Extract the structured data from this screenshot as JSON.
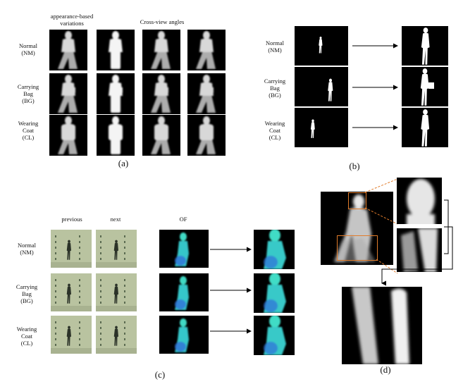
{
  "panel_a": {
    "header_left": "appearance-based\nvariations",
    "header_right": "Cross-view angles",
    "rows": [
      "Normal\n(NM)",
      "Carrying\nBag\n(BG)",
      "Wearing\nCoat\n(CL)"
    ],
    "caption": "(a)"
  },
  "panel_b": {
    "rows": [
      "Normal\n(NM)",
      "Carrying\nBag\n(BG)",
      "Wearing\nCoat\n(CL)"
    ],
    "caption": "(b)"
  },
  "panel_c": {
    "headers": [
      "previous",
      "next",
      "OF"
    ],
    "rows": [
      "Normal\n(NM)",
      "Carrying\nBag\n(BG)",
      "Wearing\nCoat\n(CL)"
    ],
    "caption": "(c)"
  },
  "panel_d": {
    "caption": "(d)"
  },
  "colors": {
    "highlight": "#e07b2a",
    "flow": "#3fd9c4",
    "frame_bg": "#b9c3a0"
  }
}
